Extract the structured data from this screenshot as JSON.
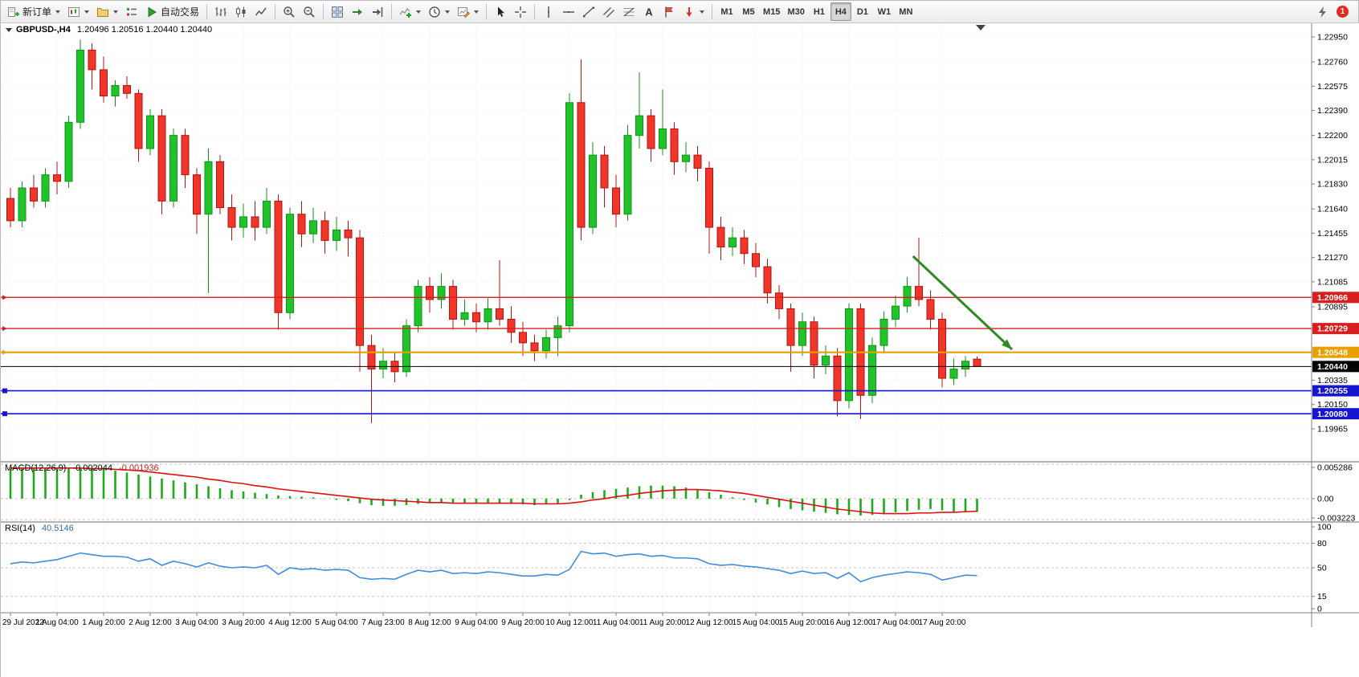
{
  "toolbar": {
    "new_order_label": "新订单",
    "autotrading_label": "自动交易",
    "text_tool_glyph": "A",
    "timeframes": [
      "M1",
      "M5",
      "M15",
      "M30",
      "H1",
      "H4",
      "D1",
      "W1",
      "MN"
    ],
    "active_timeframe": "H4",
    "notification_count": "1"
  },
  "chart": {
    "title_symbol": "GBPUSD-,H4",
    "ohlc_text": "1.20496 1.20516 1.20440 1.20440",
    "ohlc": {
      "open": "1.20496",
      "high": "1.20516",
      "low": "1.20440",
      "close": "1.20440"
    }
  },
  "chart_data": {
    "type": "candlestick",
    "symbol": "GBPUSD-",
    "timeframe": "H4",
    "colors": {
      "bull": "#21c32b",
      "bull_edge": "#0f9418",
      "bear": "#f0352b",
      "bear_edge": "#b51410",
      "macd_hist": "#1daa1d",
      "macd_signal": "#e01010",
      "rsi": "#3f8ede",
      "grid": "#e5e5e5"
    },
    "x_labels": [
      "29 Jul 2022",
      "1 Aug 04:00",
      "1 Aug 20:00",
      "2 Aug 12:00",
      "3 Aug 04:00",
      "3 Aug 20:00",
      "4 Aug 12:00",
      "5 Aug 04:00",
      "7 Aug 23:00",
      "8 Aug 12:00",
      "9 Aug 04:00",
      "9 Aug 20:00",
      "10 Aug 12:00",
      "11 Aug 04:00",
      "11 Aug 20:00",
      "12 Aug 12:00",
      "15 Aug 04:00",
      "15 Aug 20:00",
      "16 Aug 12:00",
      "17 Aug 04:00",
      "17 Aug 20:00"
    ],
    "y_ticks": [
      "1.22950",
      "1.22760",
      "1.22575",
      "1.22390",
      "1.22200",
      "1.22015",
      "1.21830",
      "1.21640",
      "1.21455",
      "1.21270",
      "1.21085",
      "1.20895",
      "1.20335",
      "1.20150",
      "1.19965"
    ],
    "candles": [
      [
        1.2172,
        1.218,
        1.215,
        1.2155
      ],
      [
        1.2155,
        1.2185,
        1.215,
        1.218
      ],
      [
        1.218,
        1.219,
        1.2165,
        1.217
      ],
      [
        1.217,
        1.2195,
        1.2165,
        1.219
      ],
      [
        1.219,
        1.22,
        1.2175,
        1.2185
      ],
      [
        1.2185,
        1.2235,
        1.218,
        1.223
      ],
      [
        1.223,
        1.2293,
        1.2225,
        1.2285
      ],
      [
        1.2285,
        1.229,
        1.2255,
        1.227
      ],
      [
        1.227,
        1.228,
        1.2245,
        1.225
      ],
      [
        1.225,
        1.2262,
        1.2242,
        1.2258
      ],
      [
        1.2258,
        1.2265,
        1.2248,
        1.2252
      ],
      [
        1.2252,
        1.2255,
        1.22,
        1.221
      ],
      [
        1.221,
        1.224,
        1.2205,
        1.2235
      ],
      [
        1.2235,
        1.224,
        1.216,
        1.217
      ],
      [
        1.217,
        1.2225,
        1.2165,
        1.222
      ],
      [
        1.222,
        1.2225,
        1.218,
        1.219
      ],
      [
        1.219,
        1.2195,
        1.2145,
        1.216
      ],
      [
        1.216,
        1.221,
        1.21,
        1.22
      ],
      [
        1.22,
        1.2205,
        1.216,
        1.2165
      ],
      [
        1.2165,
        1.2175,
        1.214,
        1.215
      ],
      [
        1.215,
        1.2168,
        1.2142,
        1.2158
      ],
      [
        1.2158,
        1.217,
        1.214,
        1.215
      ],
      [
        1.215,
        1.218,
        1.2145,
        1.217
      ],
      [
        1.217,
        1.2175,
        1.2072,
        1.2085
      ],
      [
        1.2085,
        1.2165,
        1.208,
        1.216
      ],
      [
        1.216,
        1.217,
        1.2135,
        1.2145
      ],
      [
        1.2145,
        1.2165,
        1.2138,
        1.2155
      ],
      [
        1.2155,
        1.2162,
        1.213,
        1.214
      ],
      [
        1.214,
        1.2158,
        1.2132,
        1.2148
      ],
      [
        1.2148,
        1.2155,
        1.2128,
        1.2142
      ],
      [
        1.2142,
        1.2148,
        1.204,
        1.206
      ],
      [
        1.206,
        1.2068,
        1.2001,
        1.2042
      ],
      [
        1.2042,
        1.2058,
        1.2035,
        1.2048
      ],
      [
        1.2048,
        1.2055,
        1.2032,
        1.204
      ],
      [
        1.204,
        1.208,
        1.2036,
        1.2075
      ],
      [
        1.2075,
        1.211,
        1.207,
        1.2105
      ],
      [
        1.2105,
        1.2112,
        1.2085,
        1.2095
      ],
      [
        1.2095,
        1.2115,
        1.2088,
        1.2105
      ],
      [
        1.2105,
        1.211,
        1.2072,
        1.208
      ],
      [
        1.208,
        1.2095,
        1.2075,
        1.2085
      ],
      [
        1.2085,
        1.2092,
        1.207,
        1.2078
      ],
      [
        1.2078,
        1.2096,
        1.2072,
        1.2088
      ],
      [
        1.2088,
        1.2125,
        1.2075,
        1.208
      ],
      [
        1.208,
        1.209,
        1.2062,
        1.207
      ],
      [
        1.207,
        1.2078,
        1.2052,
        1.2062
      ],
      [
        1.2062,
        1.2068,
        1.2048,
        1.2056
      ],
      [
        1.2056,
        1.2072,
        1.205,
        1.2066
      ],
      [
        1.2066,
        1.2082,
        1.2052,
        1.2075
      ],
      [
        1.2075,
        1.2252,
        1.207,
        1.2245
      ],
      [
        1.2245,
        1.2278,
        1.214,
        1.215
      ],
      [
        1.215,
        1.2215,
        1.2145,
        1.2205
      ],
      [
        1.2205,
        1.2212,
        1.2165,
        1.218
      ],
      [
        1.218,
        1.219,
        1.215,
        1.216
      ],
      [
        1.216,
        1.2228,
        1.2155,
        1.222
      ],
      [
        1.222,
        1.2268,
        1.221,
        1.2235
      ],
      [
        1.2235,
        1.224,
        1.22,
        1.221
      ],
      [
        1.221,
        1.2255,
        1.2205,
        1.2225
      ],
      [
        1.2225,
        1.223,
        1.219,
        1.22
      ],
      [
        1.22,
        1.2215,
        1.2192,
        1.2205
      ],
      [
        1.2205,
        1.2212,
        1.2185,
        1.2195
      ],
      [
        1.2195,
        1.22,
        1.213,
        1.215
      ],
      [
        1.215,
        1.2158,
        1.2125,
        1.2135
      ],
      [
        1.2135,
        1.215,
        1.2128,
        1.2142
      ],
      [
        1.2142,
        1.2148,
        1.2122,
        1.213
      ],
      [
        1.213,
        1.2138,
        1.2112,
        1.212
      ],
      [
        1.212,
        1.2126,
        1.2092,
        1.21
      ],
      [
        1.21,
        1.2106,
        1.208,
        1.2088
      ],
      [
        1.2088,
        1.2092,
        1.204,
        1.206
      ],
      [
        1.206,
        1.2085,
        1.2052,
        1.2078
      ],
      [
        1.2078,
        1.2082,
        1.2035,
        1.2045
      ],
      [
        1.2045,
        1.206,
        1.2038,
        1.2052
      ],
      [
        1.2052,
        1.2058,
        1.2006,
        1.2018
      ],
      [
        1.2018,
        1.2092,
        1.2012,
        1.2088
      ],
      [
        1.2088,
        1.2092,
        1.2004,
        1.2022
      ],
      [
        1.2022,
        1.2066,
        1.2016,
        1.206
      ],
      [
        1.206,
        1.2086,
        1.2054,
        1.208
      ],
      [
        1.208,
        1.2098,
        1.2074,
        1.209
      ],
      [
        1.209,
        1.2112,
        1.2085,
        1.2105
      ],
      [
        1.2105,
        1.2142,
        1.209,
        1.2095
      ],
      [
        1.2095,
        1.2102,
        1.2072,
        1.208
      ],
      [
        1.208,
        1.2085,
        1.2028,
        1.2035
      ],
      [
        1.2035,
        1.205,
        1.203,
        1.2042
      ],
      [
        1.2042,
        1.2052,
        1.2036,
        1.2048
      ],
      [
        1.20496,
        1.20516,
        1.2044,
        1.2044
      ]
    ],
    "levels": [
      {
        "price": 1.20966,
        "label": "1.20966",
        "color": "#d81f1f",
        "width": 1.4,
        "marker": "arrow",
        "role": "resistance-line"
      },
      {
        "price": 1.20729,
        "label": "1.20729",
        "color": "#d81f1f",
        "width": 1.4,
        "marker": "arrow",
        "role": "resistance-line"
      },
      {
        "price": 1.20548,
        "label": "1.20548",
        "color": "#e8a000",
        "width": 2.2,
        "marker": "arrow",
        "role": "pivot-line"
      },
      {
        "price": 1.2044,
        "label": "1.20440",
        "color": "#000000",
        "width": 1.0,
        "role": "current-price"
      },
      {
        "price": 1.20255,
        "label": "1.20255",
        "color": "#1616cf",
        "width": 1.6,
        "marker": "square",
        "role": "support-line"
      },
      {
        "price": 1.2008,
        "label": "1.20080",
        "color": "#1616cf",
        "width": 1.6,
        "marker": "square",
        "role": "support-line"
      }
    ],
    "arrow": {
      "from_index": 77.5,
      "from_price": 1.2128,
      "to_index": 86,
      "to_price": 1.2057,
      "color": "#2e8b22"
    },
    "macd": {
      "title": "MACD(12,26,9)",
      "main_value": "-0.002044",
      "signal_value": "-0.001936",
      "scale": [
        "0.005286",
        "0.00",
        "-0.003223"
      ],
      "histogram": [
        0.0046,
        0.0047,
        0.0048,
        0.0048,
        0.0047,
        0.0047,
        0.0048,
        0.0047,
        0.0045,
        0.0043,
        0.004,
        0.0037,
        0.0034,
        0.0031,
        0.0028,
        0.0025,
        0.0022,
        0.0019,
        0.0016,
        0.0013,
        0.0011,
        0.0009,
        0.0007,
        0.0005,
        0.0004,
        0.0003,
        0.0002,
        0.0,
        -0.0002,
        -0.0004,
        -0.0007,
        -0.001,
        -0.0011,
        -0.0011,
        -0.001,
        -0.0008,
        -0.0007,
        -0.0006,
        -0.0007,
        -0.0007,
        -0.0008,
        -0.0007,
        -0.0007,
        -0.0008,
        -0.0009,
        -0.001,
        -0.0009,
        -0.0008,
        -0.0002,
        0.0006,
        0.001,
        0.0013,
        0.0015,
        0.0017,
        0.0019,
        0.002,
        0.002,
        0.0019,
        0.0017,
        0.0014,
        0.001,
        0.0006,
        0.0002,
        -0.0002,
        -0.0006,
        -0.0009,
        -0.0013,
        -0.0016,
        -0.0018,
        -0.002,
        -0.0022,
        -0.0024,
        -0.0025,
        -0.0026,
        -0.0025,
        -0.0023,
        -0.0021,
        -0.0019,
        -0.0017,
        -0.0016,
        -0.0018,
        -0.002,
        -0.0021,
        -0.002044
      ],
      "signal": [
        0.0047,
        0.0047,
        0.0047,
        0.0047,
        0.0047,
        0.0047,
        0.0047,
        0.0046,
        0.0046,
        0.0045,
        0.0044,
        0.0043,
        0.0041,
        0.0039,
        0.0037,
        0.0035,
        0.0033,
        0.003,
        0.0028,
        0.0025,
        0.0023,
        0.002,
        0.0018,
        0.0015,
        0.0013,
        0.0011,
        0.0009,
        0.0007,
        0.0005,
        0.0003,
        0.0001,
        -0.0001,
        -0.0002,
        -0.0003,
        -0.0004,
        -0.0005,
        -0.0006,
        -0.0006,
        -0.0007,
        -0.0007,
        -0.0007,
        -0.0007,
        -0.0007,
        -0.0007,
        -0.0007,
        -0.0008,
        -0.0008,
        -0.0008,
        -0.0007,
        -0.0005,
        -0.0002,
        0.0,
        0.0003,
        0.0005,
        0.0008,
        0.001,
        0.0012,
        0.0013,
        0.0014,
        0.0014,
        0.0013,
        0.0012,
        0.001,
        0.0008,
        0.0005,
        0.0002,
        -0.0001,
        -0.0004,
        -0.0007,
        -0.001,
        -0.0013,
        -0.0016,
        -0.0018,
        -0.002,
        -0.0022,
        -0.0023,
        -0.0023,
        -0.0023,
        -0.0022,
        -0.0022,
        -0.0021,
        -0.0021,
        -0.002,
        -0.001936
      ]
    },
    "rsi": {
      "title": "RSI(14)",
      "value": "40.5146",
      "scale": [
        "100",
        "80",
        "50",
        "15",
        "0"
      ],
      "level_lines": [
        80,
        50,
        15
      ],
      "values": [
        55,
        57,
        56,
        58,
        60,
        64,
        68,
        66,
        64,
        64,
        63,
        58,
        61,
        53,
        58,
        55,
        51,
        56,
        52,
        50,
        51,
        50,
        53,
        42,
        50,
        48,
        49,
        47,
        48,
        47,
        38,
        36,
        37,
        36,
        42,
        47,
        45,
        47,
        43,
        44,
        43,
        45,
        44,
        42,
        40,
        40,
        42,
        41,
        48,
        70,
        67,
        68,
        64,
        66,
        67,
        64,
        65,
        62,
        62,
        61,
        55,
        53,
        54,
        52,
        51,
        49,
        47,
        43,
        46,
        43,
        44,
        37,
        44,
        33,
        38,
        41,
        43,
        45,
        44,
        42,
        35,
        38,
        41,
        40.5
      ]
    }
  }
}
